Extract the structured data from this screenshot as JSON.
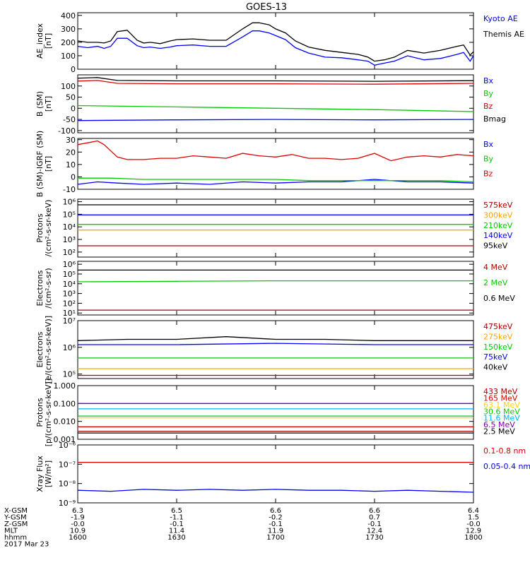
{
  "title": "GOES-13",
  "colors": {
    "black": "#000000",
    "blue": "#0000ff",
    "green": "#00cc00",
    "red": "#dd0000",
    "darkred": "#aa0000",
    "orange": "#ffa500",
    "yellow": "#ffd700",
    "cyan": "#00b4ff",
    "purple": "#7a00aa",
    "magenta": "#cc0066",
    "brown": "#996633"
  },
  "chart_data": [
    {
      "type": "line",
      "ylabel": "AE_index\n[nT]",
      "yscale": "linear",
      "ylim": [
        0,
        420
      ],
      "ticks": [
        {
          "v": 0,
          "l": "0"
        },
        {
          "v": 100,
          "l": "100"
        },
        {
          "v": 200,
          "l": "200"
        },
        {
          "v": 300,
          "l": "300"
        },
        {
          "v": 400,
          "l": "400"
        }
      ],
      "series": [
        {
          "name": "Kyoto AE",
          "color": "blue",
          "x": [
            1600,
            1603,
            1606,
            1608,
            1610,
            1612,
            1615,
            1618,
            1620,
            1622,
            1625,
            1628,
            1630,
            1635,
            1640,
            1645,
            1650,
            1653,
            1655,
            1658,
            1700,
            1703,
            1706,
            1710,
            1715,
            1720,
            1725,
            1728,
            1730,
            1733,
            1736,
            1740,
            1745,
            1750,
            1755,
            1757,
            1759,
            1800
          ],
          "y": [
            170,
            160,
            170,
            155,
            170,
            230,
            230,
            175,
            160,
            165,
            155,
            165,
            175,
            180,
            170,
            170,
            240,
            285,
            285,
            270,
            250,
            220,
            160,
            120,
            90,
            85,
            70,
            60,
            30,
            45,
            60,
            100,
            70,
            80,
            110,
            125,
            60,
            100
          ]
        },
        {
          "name": "Themis AE",
          "color": "black",
          "x": [
            1600,
            1603,
            1606,
            1608,
            1610,
            1612,
            1615,
            1618,
            1620,
            1622,
            1625,
            1628,
            1630,
            1635,
            1640,
            1645,
            1650,
            1653,
            1655,
            1658,
            1700,
            1703,
            1706,
            1710,
            1715,
            1720,
            1725,
            1728,
            1730,
            1733,
            1736,
            1740,
            1745,
            1750,
            1755,
            1757,
            1759,
            1800
          ],
          "y": [
            210,
            200,
            200,
            195,
            210,
            280,
            290,
            215,
            195,
            200,
            190,
            210,
            220,
            225,
            215,
            215,
            300,
            345,
            345,
            330,
            300,
            270,
            210,
            165,
            140,
            125,
            110,
            90,
            60,
            70,
            90,
            140,
            120,
            140,
            170,
            180,
            105,
            130
          ]
        }
      ]
    },
    {
      "type": "line",
      "ylabel": "B (SM)\n[nT]",
      "yscale": "linear",
      "ylim": [
        -110,
        150
      ],
      "ticks": [
        {
          "v": -100,
          "l": "-100"
        },
        {
          "v": -50,
          "l": "-50"
        },
        {
          "v": 0,
          "l": "0"
        },
        {
          "v": 50,
          "l": "50"
        },
        {
          "v": 100,
          "l": "100"
        }
      ],
      "series": [
        {
          "name": "Bx",
          "color": "blue",
          "x": [
            1600,
            1630,
            1700,
            1730,
            1800
          ],
          "y": [
            -55,
            -52,
            -50,
            -52,
            -50
          ]
        },
        {
          "name": "By",
          "color": "green",
          "x": [
            1600,
            1630,
            1700,
            1730,
            1800
          ],
          "y": [
            12,
            6,
            0,
            -6,
            -15
          ]
        },
        {
          "name": "Bz",
          "color": "red",
          "x": [
            1600,
            1606,
            1612,
            1630,
            1700,
            1730,
            1800
          ],
          "y": [
            122,
            125,
            112,
            110,
            110,
            108,
            112
          ]
        },
        {
          "name": "Bmag",
          "color": "black",
          "x": [
            1600,
            1606,
            1612,
            1630,
            1700,
            1730,
            1800
          ],
          "y": [
            135,
            138,
            125,
            123,
            123,
            121,
            124
          ]
        }
      ]
    },
    {
      "type": "line",
      "ylabel": "B (SM)-IGRF (SM)\n[nT]",
      "yscale": "linear",
      "ylim": [
        -10,
        31
      ],
      "ticks": [
        {
          "v": -10,
          "l": "-10"
        },
        {
          "v": 0,
          "l": "0"
        },
        {
          "v": 10,
          "l": "10"
        },
        {
          "v": 20,
          "l": "20"
        },
        {
          "v": 30,
          "l": "30"
        }
      ],
      "series": [
        {
          "name": "Bx",
          "color": "blue",
          "x": [
            1600,
            1606,
            1612,
            1620,
            1630,
            1640,
            1650,
            1700,
            1710,
            1720,
            1730,
            1740,
            1750,
            1800
          ],
          "y": [
            -6,
            -4,
            -5,
            -6,
            -5,
            -6,
            -4,
            -5,
            -4,
            -4,
            -2,
            -4,
            -4,
            -5
          ]
        },
        {
          "name": "By",
          "color": "green",
          "x": [
            1600,
            1610,
            1620,
            1630,
            1640,
            1650,
            1700,
            1710,
            1720,
            1730,
            1740,
            1750,
            1800
          ],
          "y": [
            -1,
            -1,
            -2,
            -2,
            -2,
            -2,
            -2,
            -3,
            -3,
            -3,
            -3,
            -3,
            -4
          ]
        },
        {
          "name": "Bz",
          "color": "red",
          "x": [
            1600,
            1604,
            1606,
            1608,
            1612,
            1615,
            1620,
            1625,
            1630,
            1635,
            1640,
            1645,
            1650,
            1655,
            1700,
            1705,
            1710,
            1715,
            1720,
            1725,
            1730,
            1735,
            1740,
            1745,
            1750,
            1755,
            1800
          ],
          "y": [
            26,
            28,
            29,
            26,
            16,
            14,
            14,
            15,
            15,
            17,
            16,
            15,
            19,
            17,
            16,
            18,
            15,
            15,
            14,
            15,
            19,
            13,
            16,
            17,
            16,
            18,
            17
          ]
        }
      ]
    },
    {
      "type": "line",
      "ylabel": "Protons\n/(cm²-s-sr-keV)",
      "yscale": "log",
      "ylim": [
        1.6,
        6.2
      ],
      "ticks": [
        {
          "v": 2,
          "l": "10²"
        },
        {
          "v": 3,
          "l": "10³"
        },
        {
          "v": 4,
          "l": "10⁴"
        },
        {
          "v": 5,
          "l": "10⁵"
        },
        {
          "v": 6,
          "l": "10⁶"
        }
      ],
      "series": [
        {
          "name": "575keV",
          "color": "darkred",
          "x": [
            1600,
            1630,
            1700,
            1730,
            1800
          ],
          "y": [
            2.5,
            2.5,
            2.5,
            2.5,
            2.5
          ]
        },
        {
          "name": "300keV",
          "color": "orange",
          "x": [
            1600,
            1630,
            1700,
            1730,
            1800
          ],
          "y": [
            3.75,
            3.75,
            3.75,
            3.75,
            3.75
          ]
        },
        {
          "name": "210keV",
          "color": "green",
          "x": [
            1600,
            1630,
            1700,
            1730,
            1800
          ],
          "y": [
            4.2,
            4.2,
            4.2,
            4.2,
            4.2
          ]
        },
        {
          "name": "140keV",
          "color": "blue",
          "x": [
            1600,
            1630,
            1700,
            1730,
            1800
          ],
          "y": [
            4.95,
            4.95,
            4.95,
            4.95,
            4.95
          ]
        },
        {
          "name": "95keV",
          "color": "black",
          "x": [
            1600,
            1630,
            1700,
            1730,
            1800
          ],
          "y": [
            5.75,
            5.75,
            5.75,
            5.75,
            5.75
          ]
        }
      ]
    },
    {
      "type": "line",
      "ylabel": "Electrons\n/(cm²-s-sr)",
      "yscale": "log",
      "ylim": [
        0.8,
        6.3
      ],
      "ticks": [
        {
          "v": 1,
          "l": "10¹"
        },
        {
          "v": 2,
          "l": "10²"
        },
        {
          "v": 3,
          "l": "10³"
        },
        {
          "v": 4,
          "l": "10⁴"
        },
        {
          "v": 5,
          "l": "10⁵"
        },
        {
          "v": 6,
          "l": "10⁶"
        }
      ],
      "series": [
        {
          "name": "4 MeV",
          "color": "darkred",
          "x": [
            1600,
            1630,
            1700,
            1730,
            1800
          ],
          "y": [
            1.3,
            1.3,
            1.3,
            1.3,
            1.3
          ]
        },
        {
          "name": "2 MeV",
          "color": "green",
          "x": [
            1600,
            1630,
            1700,
            1730,
            1800
          ],
          "y": [
            4.2,
            4.25,
            4.3,
            4.3,
            4.3
          ]
        },
        {
          "name": "0.6 MeV",
          "color": "black",
          "x": [
            1600,
            1630,
            1700,
            1730,
            1800
          ],
          "y": [
            5.4,
            5.4,
            5.4,
            5.4,
            5.4
          ]
        }
      ]
    },
    {
      "type": "line",
      "ylabel": "Electrons\n[e/(cm²-s-sr-keV)]",
      "yscale": "log",
      "ylim": [
        4.83,
        7.0
      ],
      "ticks": [
        {
          "v": 5,
          "l": "10⁵"
        },
        {
          "v": 6,
          "l": "10⁶"
        },
        {
          "v": 7,
          "l": "10⁷"
        }
      ],
      "series": [
        {
          "name": "475keV",
          "color": "darkred",
          "x": [
            1600,
            1630,
            1700,
            1730,
            1800
          ],
          "y": [
            4.95,
            4.95,
            4.95,
            4.95,
            4.95
          ]
        },
        {
          "name": "275keV",
          "color": "orange",
          "x": [
            1600,
            1630,
            1700,
            1730,
            1800
          ],
          "y": [
            5.2,
            5.2,
            5.2,
            5.2,
            5.2
          ]
        },
        {
          "name": "150keV",
          "color": "green",
          "x": [
            1600,
            1630,
            1700,
            1730,
            1800
          ],
          "y": [
            5.6,
            5.6,
            5.6,
            5.6,
            5.6
          ]
        },
        {
          "name": "75keV",
          "color": "blue",
          "x": [
            1600,
            1630,
            1700,
            1730,
            1800
          ],
          "y": [
            6.1,
            6.1,
            6.15,
            6.1,
            6.1
          ]
        },
        {
          "name": "40keV",
          "color": "black",
          "x": [
            1600,
            1615,
            1630,
            1645,
            1700,
            1715,
            1730,
            1745,
            1800
          ],
          "y": [
            6.25,
            6.3,
            6.3,
            6.4,
            6.3,
            6.3,
            6.25,
            6.25,
            6.25
          ]
        }
      ]
    },
    {
      "type": "line",
      "ylabel": "Protons\n[p/(cm²-s-sr-keV)]",
      "yscale": "log",
      "ylim": [
        -3,
        0
      ],
      "ticks": [
        {
          "v": -3,
          "l": "0.001"
        },
        {
          "v": -2,
          "l": "0.010"
        },
        {
          "v": -1,
          "l": "0.100"
        },
        {
          "v": 0,
          "l": "1.000"
        }
      ],
      "series": [
        {
          "name": "433 MeV",
          "color": "darkred",
          "x": [
            1600,
            1630,
            1700,
            1730,
            1800
          ],
          "y": [
            -2.55,
            -2.55,
            -2.55,
            -2.55,
            -2.55
          ]
        },
        {
          "name": "165 MeV",
          "color": "red",
          "x": [
            1600,
            1630,
            1700,
            1730,
            1800
          ],
          "y": [
            -2.3,
            -2.3,
            -2.3,
            -2.3,
            -2.3
          ]
        },
        {
          "name": "63.1 MeV",
          "color": "yellow",
          "x": [
            1600,
            1630,
            1700,
            1730,
            1800
          ],
          "y": [
            -1.8,
            -1.8,
            -1.8,
            -1.8,
            -1.8
          ]
        },
        {
          "name": "30.6 MeV",
          "color": "green",
          "x": [
            1600,
            1630,
            1700,
            1730,
            1800
          ],
          "y": [
            -1.7,
            -1.7,
            -1.7,
            -1.7,
            -1.7
          ]
        },
        {
          "name": "11.6 MeV",
          "color": "cyan",
          "x": [
            1600,
            1630,
            1700,
            1730,
            1800
          ],
          "y": [
            -1.3,
            -1.3,
            -1.3,
            -1.3,
            -1.3
          ]
        },
        {
          "name": "6.5 MeV",
          "color": "purple",
          "x": [
            1600,
            1630,
            1700,
            1730,
            1800
          ],
          "y": [
            -1.0,
            -1.0,
            -1.0,
            -1.0,
            -1.0
          ]
        },
        {
          "name": "2.5 MeV",
          "color": "black",
          "x": [
            1600,
            1630,
            1700,
            1730,
            1800
          ],
          "y": [
            -2.65,
            -2.65,
            -2.65,
            -2.65,
            -2.65
          ]
        }
      ]
    },
    {
      "type": "line",
      "ylabel": "Xray Flux\n[W/m²]",
      "yscale": "log",
      "ylim": [
        -9,
        -6
      ],
      "ticks": [
        {
          "v": -9,
          "l": "10⁻⁹"
        },
        {
          "v": -8,
          "l": "10⁻⁸"
        },
        {
          "v": -7,
          "l": "10⁻⁷"
        },
        {
          "v": -6,
          "l": "10⁻⁶"
        }
      ],
      "series": [
        {
          "name": "0.1-0.8 nm",
          "color": "red",
          "x": [
            1600,
            1630,
            1700,
            1730,
            1800
          ],
          "y": [
            -6.9,
            -6.9,
            -6.9,
            -6.9,
            -6.9
          ]
        },
        {
          "name": "0.05-0.4 nm",
          "color": "blue",
          "x": [
            1600,
            1610,
            1620,
            1630,
            1640,
            1650,
            1700,
            1710,
            1720,
            1730,
            1740,
            1750,
            1800
          ],
          "y": [
            -8.35,
            -8.4,
            -8.3,
            -8.35,
            -8.3,
            -8.35,
            -8.3,
            -8.35,
            -8.35,
            -8.4,
            -8.35,
            -8.4,
            -8.45
          ]
        }
      ]
    }
  ],
  "x_axis": {
    "xlim": [
      1600,
      1800
    ],
    "tick_values": [
      1600,
      1630,
      1700,
      1730,
      1800
    ],
    "rows": [
      {
        "label": "X-GSM",
        "values": [
          "6.3",
          "6.5",
          "6.6",
          "6.6",
          "6.4"
        ]
      },
      {
        "label": "Y-GSM",
        "values": [
          "-1.9",
          "-1.1",
          "-0.2",
          "0.7",
          "1.5"
        ]
      },
      {
        "label": "Z-GSM",
        "values": [
          "-0.0",
          "-0.1",
          "-0.1",
          "-0.1",
          "-0.0"
        ]
      },
      {
        "label": "MLT",
        "values": [
          "10.9",
          "11.4",
          "11.9",
          "12.4",
          "12.9"
        ]
      },
      {
        "label": "hhmm",
        "values": [
          "1600",
          "1630",
          "1700",
          "1730",
          "1800"
        ]
      }
    ],
    "date": "2017 Mar 23"
  }
}
